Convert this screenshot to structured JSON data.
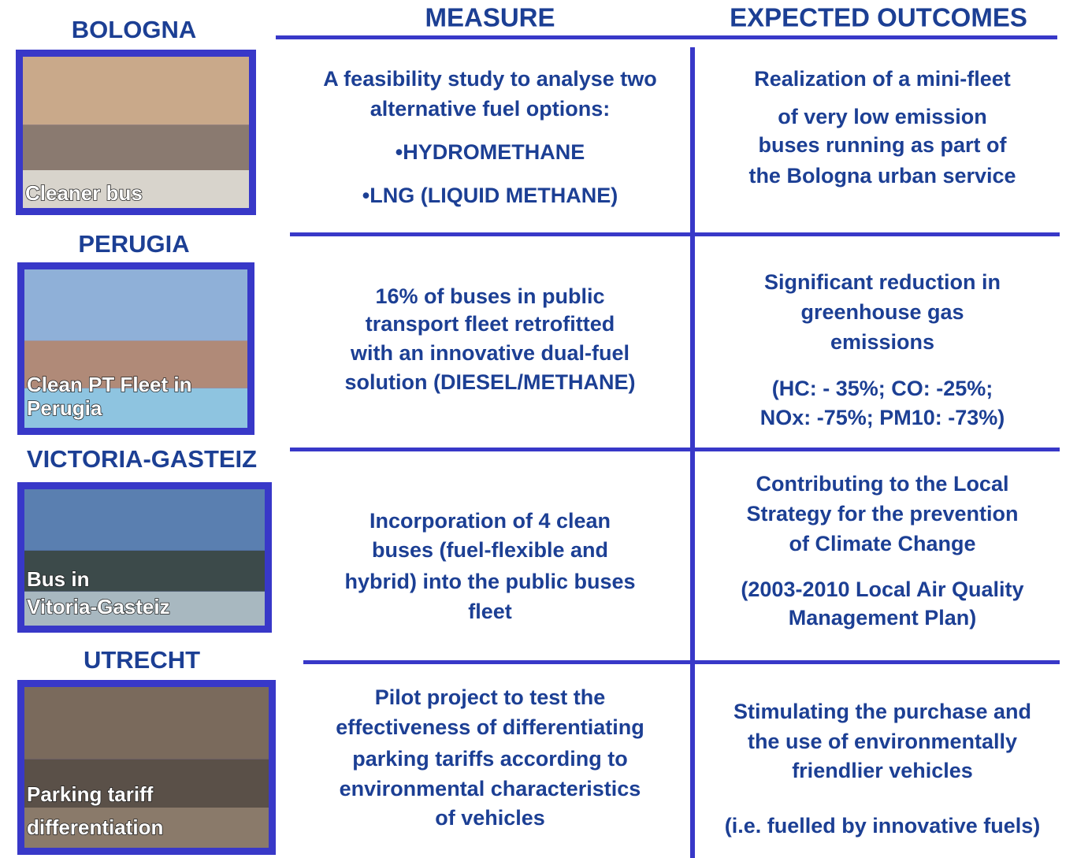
{
  "header": {
    "measure": "MEASURE",
    "outcomes": "EXPECTED OUTCOMES"
  },
  "rows": [
    {
      "city": "BOLOGNA",
      "caption": [
        "Cleaner bus"
      ],
      "measure": [
        "A feasibility study to analyse two",
        "alternative fuel options:",
        "•HYDROMETHANE",
        "•LNG (LIQUID METHANE)"
      ],
      "outcomes": [
        "Realization  of a mini-fleet",
        "of very low emission",
        "buses running as part of",
        "the Bologna urban service"
      ]
    },
    {
      "city": "PERUGIA",
      "caption": [
        "Clean PT Fleet in",
        "Perugia"
      ],
      "measure": [
        "16% of buses in public",
        "transport fleet retrofitted",
        "with an innovative dual-fuel",
        "solution (DIESEL/METHANE)"
      ],
      "outcomes": [
        "Significant reduction in",
        "greenhouse gas",
        "emissions",
        "(HC: - 35%; CO: -25%;",
        "NOx: -75%; PM10: -73%)"
      ]
    },
    {
      "city": "VICTORIA-GASTEIZ",
      "caption": [
        "Bus in",
        "Vitoria-Gasteiz"
      ],
      "measure": [
        "Incorporation of 4 clean",
        "buses (fuel-flexible and",
        "hybrid) into the public buses",
        "fleet"
      ],
      "outcomes": [
        "Contributing to the Local",
        "Strategy for the prevention",
        "of Climate Change",
        "(2003-2010 Local Air Quality",
        "Management Plan)"
      ]
    },
    {
      "city": "UTRECHT",
      "caption": [
        "Parking tariff",
        "differentiation"
      ],
      "measure": [
        "Pilot project to test the",
        "effectiveness of differentiating",
        "parking tariffs according to",
        "environmental characteristics",
        "of vehicles"
      ],
      "outcomes": [
        "Stimulating the purchase and",
        "the use of environmentally",
        "friendlier vehicles",
        "(i.e. fuelled by innovative fuels)"
      ]
    }
  ]
}
